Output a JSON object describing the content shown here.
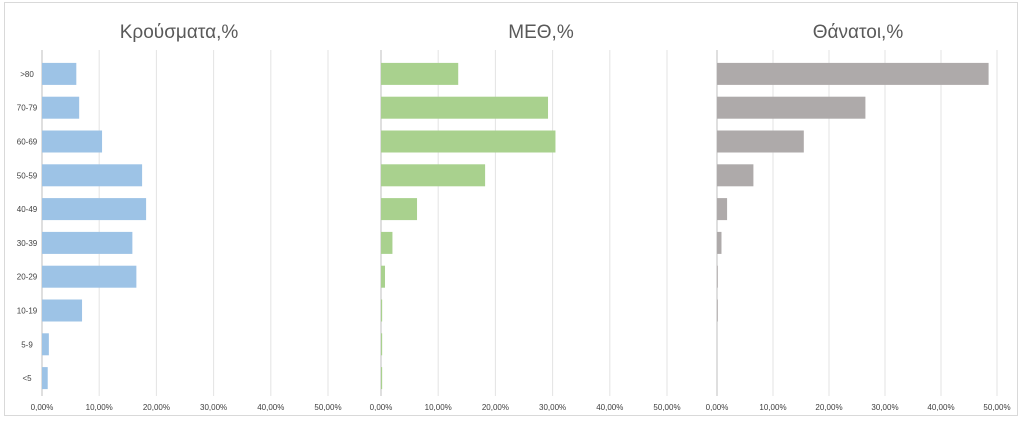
{
  "categories": [
    ">80",
    "70-79",
    "60-69",
    "50-59",
    "40-49",
    "30-39",
    "20-29",
    "10-19",
    "5-9",
    "<5"
  ],
  "chart_data": [
    {
      "type": "bar",
      "orientation": "horizontal",
      "title": "Κρούσματα,%",
      "color": "#9dc3e6",
      "categories": [
        ">80",
        "70-79",
        "60-69",
        "50-59",
        "40-49",
        "30-39",
        "20-29",
        "10-19",
        "5-9",
        "<5"
      ],
      "values": [
        6.0,
        6.5,
        10.5,
        17.5,
        18.2,
        15.8,
        16.5,
        7.0,
        1.2,
        1.0
      ],
      "xlim": [
        0,
        50
      ],
      "xticks": [
        "0,00%",
        "10,00%",
        "20,00%",
        "30,00%",
        "40,00%",
        "50,00%"
      ],
      "grid": true
    },
    {
      "type": "bar",
      "orientation": "horizontal",
      "title": "ΜΕΘ,%",
      "color": "#a9d18e",
      "categories": [
        ">80",
        "70-79",
        "60-69",
        "50-59",
        "40-49",
        "30-39",
        "20-29",
        "10-19",
        "5-9",
        "<5"
      ],
      "values": [
        13.5,
        29.2,
        30.5,
        18.2,
        6.3,
        2.0,
        0.7,
        0.2,
        0.2,
        0.2
      ],
      "xlim": [
        0,
        50
      ],
      "xticks": [
        "0,00%",
        "10,00%",
        "20,00%",
        "30,00%",
        "40,00%",
        "50,00%"
      ],
      "grid": true
    },
    {
      "type": "bar",
      "orientation": "horizontal",
      "title": "Θάνατοι,%",
      "color": "#aeaaaa",
      "categories": [
        ">80",
        "70-79",
        "60-69",
        "50-59",
        "40-49",
        "30-39",
        "20-29",
        "10-19",
        "5-9",
        "<5"
      ],
      "values": [
        48.5,
        26.5,
        15.5,
        6.5,
        1.8,
        0.8,
        0.1,
        0.1,
        0,
        0
      ],
      "xlim": [
        0,
        50
      ],
      "xticks": [
        "0,00%",
        "10,00%",
        "20,00%",
        "30,00%",
        "40,00%",
        "50,00%"
      ],
      "grid": true
    }
  ]
}
